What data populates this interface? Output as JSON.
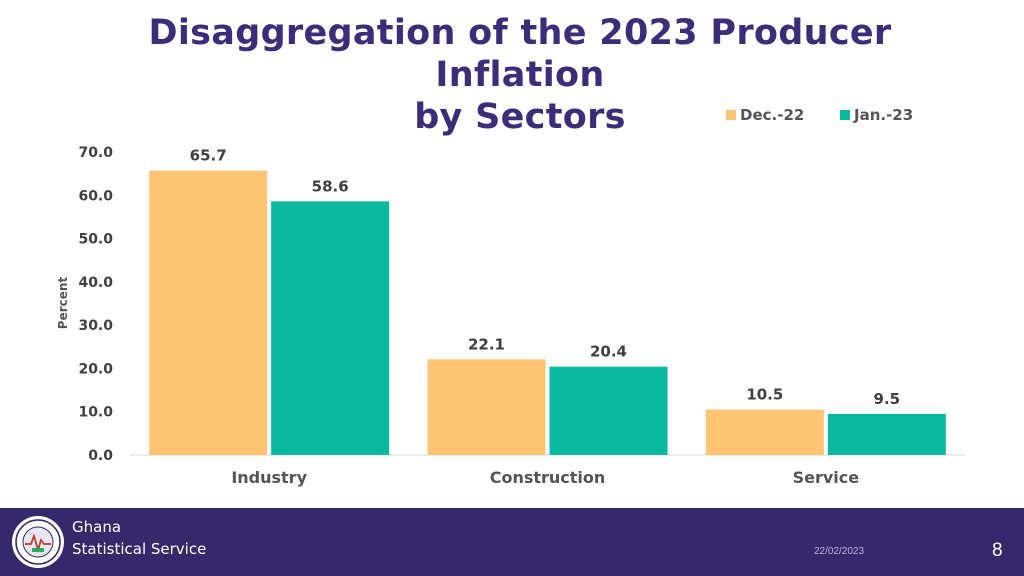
{
  "title_line1": "Disaggregation of the 2023 Producer Inflation",
  "title_line2": "by Sectors",
  "colors": {
    "dec22": "#fdc574",
    "jan23": "#0bb9a0",
    "title": "#3b2d7a",
    "footer": "#36296b"
  },
  "chart_data": {
    "type": "bar",
    "title": "Disaggregation of the 2023 Producer Inflation by Sectors",
    "categories": [
      "Industry",
      "Construction",
      "Service"
    ],
    "series": [
      {
        "name": "Dec.-22",
        "values": [
          65.7,
          22.1,
          10.5
        ],
        "labels": [
          "65.7",
          "22.1",
          "10.5"
        ]
      },
      {
        "name": "Jan.-23",
        "values": [
          58.6,
          20.4,
          9.5
        ],
        "labels": [
          "58.6",
          "20.4",
          "9.5"
        ]
      }
    ],
    "xlabel": "",
    "ylabel": "Percent",
    "ylim": [
      0,
      70
    ],
    "yticks": [
      "0.0",
      "10.0",
      "20.0",
      "30.0",
      "40.0",
      "50.0",
      "60.0",
      "70.0"
    ],
    "legend_position": "top-right",
    "grid": false
  },
  "footer": {
    "org_line1": "Ghana",
    "org_line2": "Statistical Service",
    "date": "22/02/2023",
    "page_number": "8"
  }
}
